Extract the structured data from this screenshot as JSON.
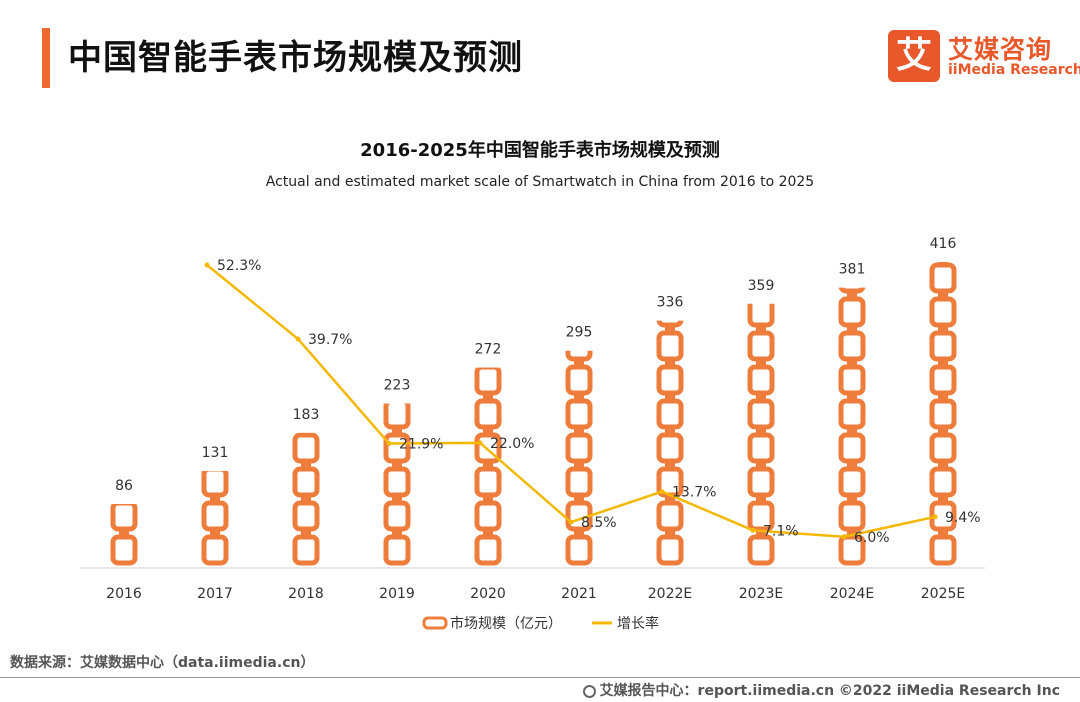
{
  "header": {
    "title": "中国智能手表市场规模及预测"
  },
  "logo": {
    "mark": "艾",
    "name_cn": "艾媒咨询",
    "name_en": "iiMedia Research",
    "color": "#e8582a"
  },
  "chart_data": {
    "type": "bar",
    "title": "2016-2025年中国智能手表市场规模及预测",
    "subtitle": "Actual and estimated market scale of Smartwatch in China from 2016 to 2025",
    "categories": [
      "2016",
      "2017",
      "2018",
      "2019",
      "2020",
      "2021",
      "2022E",
      "2023E",
      "2024E",
      "2025E"
    ],
    "series": [
      {
        "name": "市场规模（亿元）",
        "kind": "bar",
        "color": "#ee7d3c",
        "values": [
          86,
          131,
          183,
          223,
          272,
          295,
          336,
          359,
          381,
          416
        ],
        "labels": [
          "86",
          "131",
          "183",
          "223",
          "272",
          "295",
          "336",
          "359",
          "381",
          "416"
        ]
      },
      {
        "name": "增长率",
        "kind": "line",
        "color": "#f5b800",
        "values": [
          null,
          52.3,
          39.7,
          21.9,
          22.0,
          8.5,
          13.7,
          7.1,
          6.0,
          9.4
        ],
        "labels": [
          "",
          "52.3%",
          "39.7%",
          "21.9%",
          "22.0%",
          "8.5%",
          "13.7%",
          "7.1%",
          "6.0%",
          "9.4%"
        ]
      }
    ],
    "ylim": [
      0,
      430
    ],
    "y2lim": [
      0,
      60
    ],
    "grid": false,
    "legend": "bottom"
  },
  "source": "数据来源：艾媒数据中心（data.iimedia.cn）",
  "footer": "艾媒报告中心：report.iimedia.cn ©2022 iiMedia Research Inc"
}
